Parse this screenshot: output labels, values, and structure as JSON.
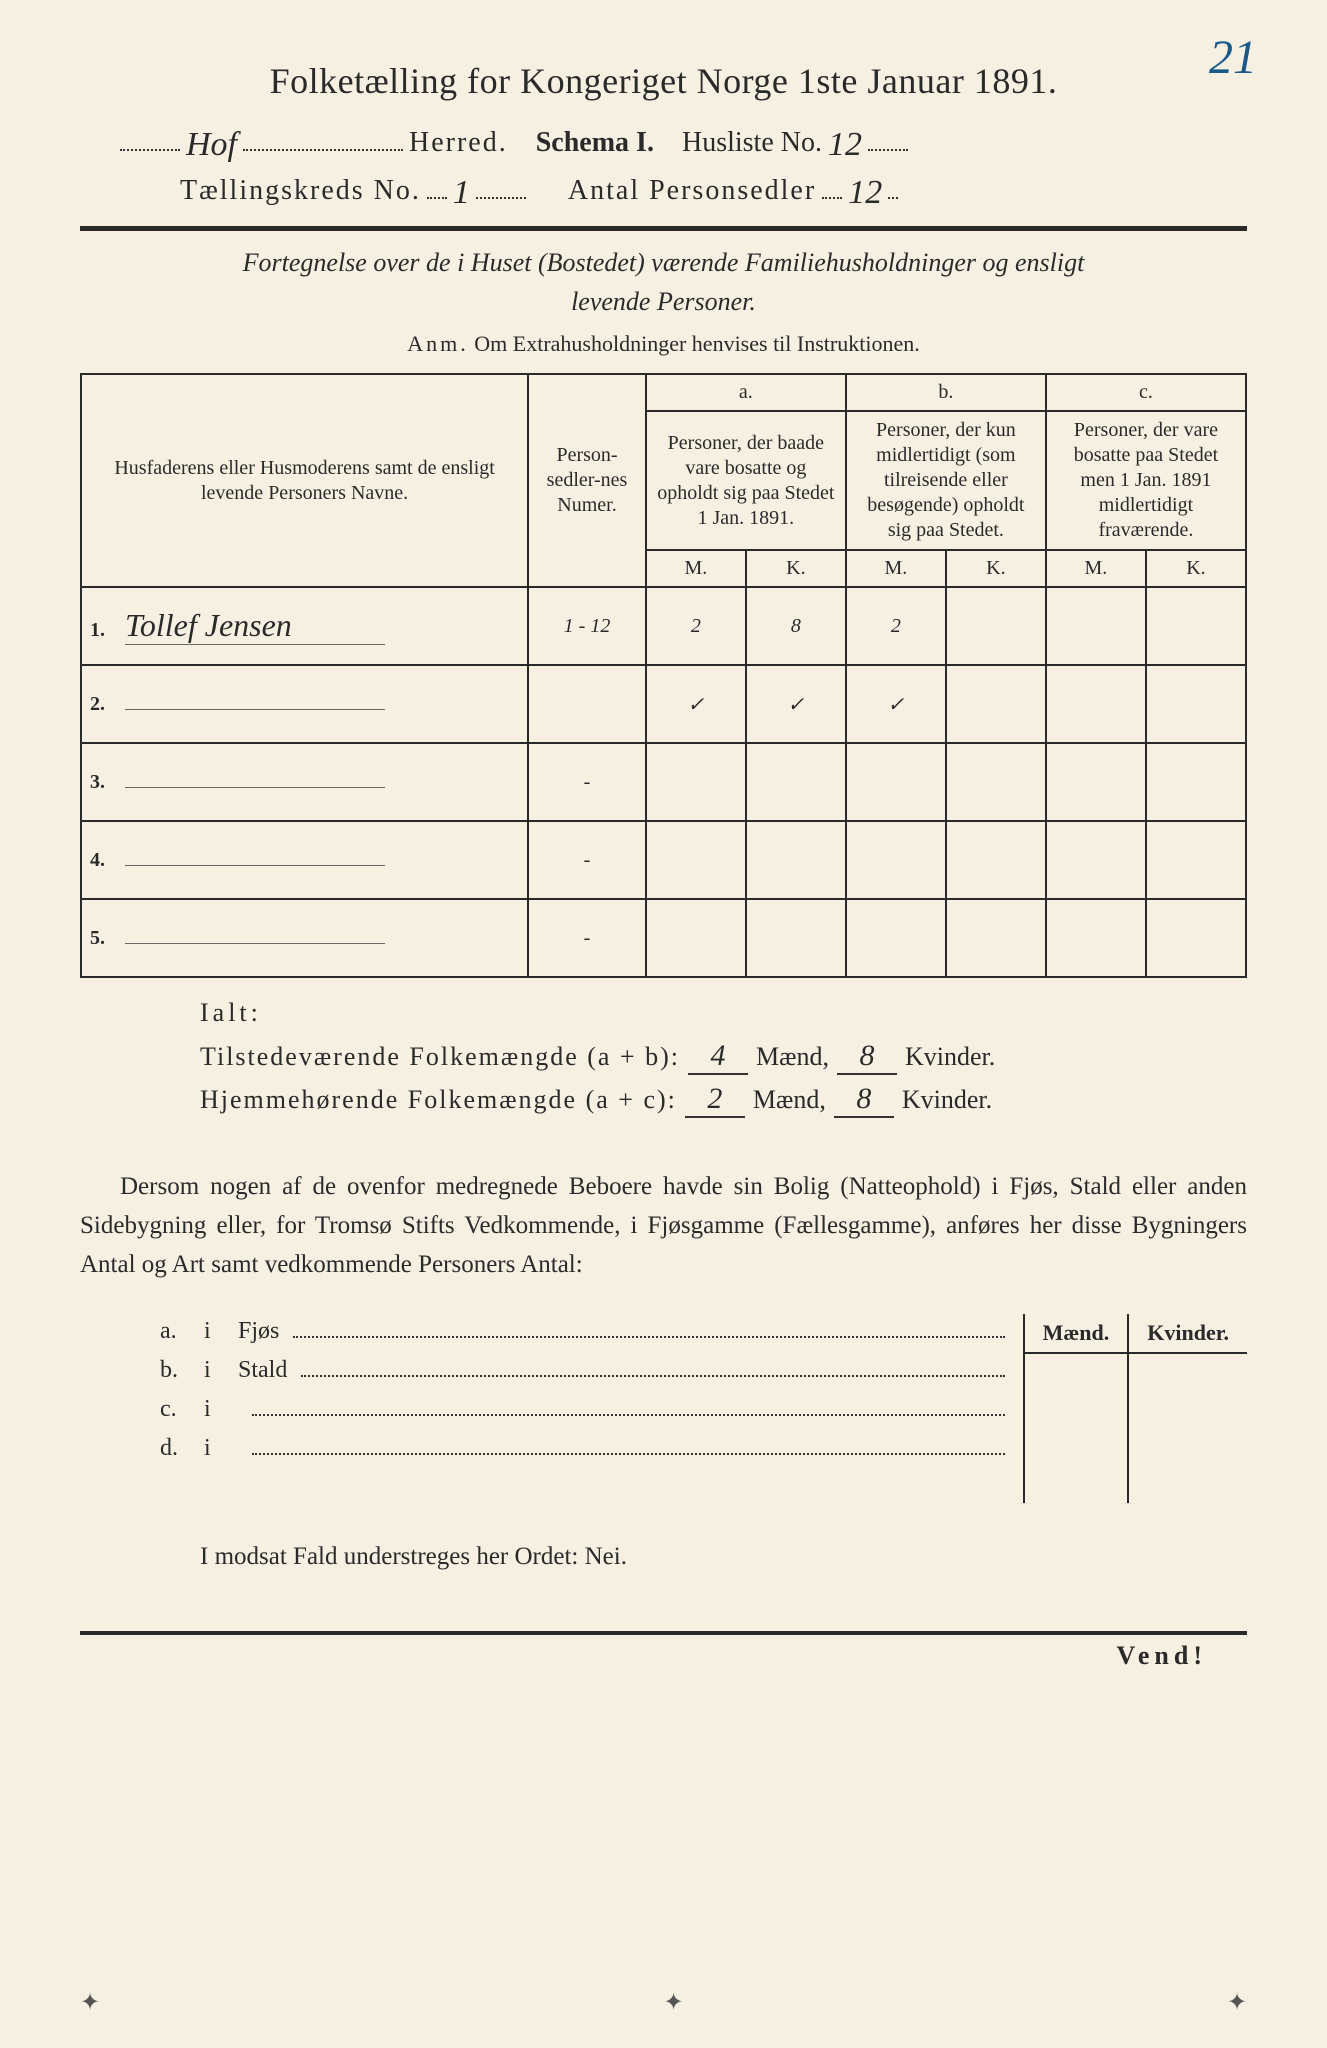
{
  "page_number_corner": "21",
  "title": "Folketælling for Kongeriget Norge 1ste Januar 1891.",
  "header": {
    "herred_value": "Hof",
    "herred_label": "Herred.",
    "schema_label": "Schema I.",
    "husliste_label": "Husliste No.",
    "husliste_value": "12",
    "kreds_label": "Tællingskreds No.",
    "kreds_value": "1",
    "antal_label": "Antal Personsedler",
    "antal_value": "12"
  },
  "subtitle_line1": "Fortegnelse over de i Huset (Bostedet) værende Familiehusholdninger og ensligt",
  "subtitle_line2": "levende Personer.",
  "anm_label": "Anm.",
  "anm_text": "Om Extrahusholdninger henvises til Instruktionen.",
  "table": {
    "col_name": "Husfaderens eller Husmoderens samt de ensligt levende Personers Navne.",
    "col_num": "Person-sedler-nes Numer.",
    "col_a_letter": "a.",
    "col_a": "Personer, der baade vare bosatte og opholdt sig paa Stedet 1 Jan. 1891.",
    "col_b_letter": "b.",
    "col_b": "Personer, der kun midlertidigt (som tilreisende eller besøgende) opholdt sig paa Stedet.",
    "col_c_letter": "c.",
    "col_c": "Personer, der vare bosatte paa Stedet men 1 Jan. 1891 midlertidigt fraværende.",
    "m": "M.",
    "k": "K.",
    "rows": [
      {
        "n": "1.",
        "name": "Tollef Jensen",
        "num": "1 - 12",
        "a_m": "2",
        "a_k": "8",
        "b_m": "2",
        "b_k": "",
        "c_m": "",
        "c_k": ""
      },
      {
        "n": "2.",
        "name": "",
        "num": "",
        "a_m": "✓",
        "a_k": "✓",
        "b_m": "✓",
        "b_k": "",
        "c_m": "",
        "c_k": ""
      },
      {
        "n": "3.",
        "name": "",
        "num": "-",
        "a_m": "",
        "a_k": "",
        "b_m": "",
        "b_k": "",
        "c_m": "",
        "c_k": ""
      },
      {
        "n": "4.",
        "name": "",
        "num": "-",
        "a_m": "",
        "a_k": "",
        "b_m": "",
        "b_k": "",
        "c_m": "",
        "c_k": ""
      },
      {
        "n": "5.",
        "name": "",
        "num": "-",
        "a_m": "",
        "a_k": "",
        "b_m": "",
        "b_k": "",
        "c_m": "",
        "c_k": ""
      }
    ]
  },
  "ialt": {
    "label": "Ialt:",
    "row1_label": "Tilstedeværende Folkemængde (a + b):",
    "row1_m": "4",
    "row1_k": "8",
    "row2_label": "Hjemmehørende Folkemængde (a + c):",
    "row2_m": "2",
    "row2_k": "8",
    "maend": "Mænd,",
    "kvinder": "Kvinder."
  },
  "paragraph": "Dersom nogen af de ovenfor medregnede Beboere havde sin Bolig (Natteophold) i Fjøs, Stald eller anden Sidebygning eller, for Tromsø Stifts Vedkommende, i Fjøsgamme (Fællesgamme), anføres her disse Bygningers Antal og Art samt vedkommende Personers Antal:",
  "sidebyg": {
    "mk_m": "Mænd.",
    "mk_k": "Kvinder.",
    "rows": [
      {
        "lbl": "a.",
        "txt": "Fjøs"
      },
      {
        "lbl": "b.",
        "txt": "Stald"
      },
      {
        "lbl": "c.",
        "txt": ""
      },
      {
        "lbl": "d.",
        "txt": ""
      }
    ],
    "i": "i"
  },
  "modsat": "I modsat Fald understreges her Ordet: Nei.",
  "vend": "Vend!",
  "colors": {
    "bg": "#f5f0e1",
    "ink": "#2a2a2a",
    "blue_pencil": "#1a5a8a"
  }
}
